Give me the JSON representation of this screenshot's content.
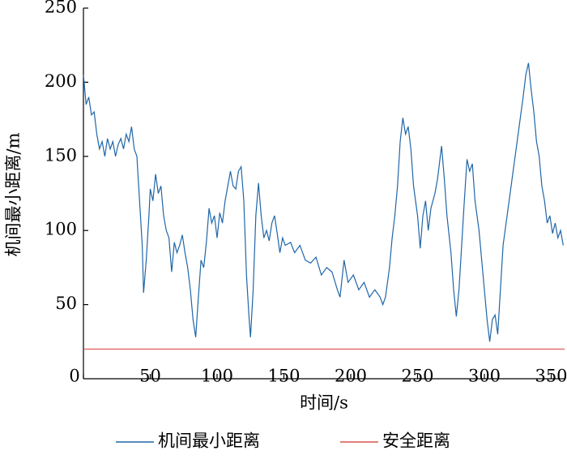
{
  "chart_data": {
    "type": "line",
    "x_label": "时间/s",
    "y_label": "机间最小距离/m",
    "xlim": [
      0,
      360
    ],
    "ylim": [
      0,
      250
    ],
    "xticks": [
      0,
      50,
      100,
      150,
      200,
      250,
      300,
      350
    ],
    "yticks": [
      50,
      100,
      150,
      200,
      250
    ],
    "series": [
      {
        "name": "机间最小距离",
        "color": "#2066a8",
        "x": [
          0,
          2,
          4,
          6,
          8,
          10,
          12,
          14,
          16,
          18,
          20,
          22,
          24,
          26,
          28,
          30,
          32,
          34,
          36,
          38,
          40,
          42,
          44,
          45,
          47,
          49,
          50,
          52,
          54,
          56,
          58,
          60,
          62,
          64,
          66,
          68,
          70,
          72,
          74,
          76,
          78,
          80,
          82,
          84,
          86,
          88,
          90,
          92,
          94,
          96,
          98,
          100,
          102,
          104,
          106,
          108,
          110,
          112,
          114,
          116,
          118,
          120,
          122,
          124,
          125,
          127,
          129,
          131,
          133,
          135,
          137,
          139,
          141,
          143,
          145,
          147,
          149,
          151,
          155,
          158,
          162,
          166,
          170,
          174,
          178,
          182,
          186,
          190,
          192,
          195,
          198,
          202,
          206,
          210,
          214,
          218,
          222,
          224,
          226,
          229,
          231,
          233,
          235,
          237,
          239,
          241,
          243,
          245,
          247,
          250,
          252,
          254,
          256,
          258,
          260,
          263,
          265,
          267,
          268,
          270,
          272,
          275,
          277,
          279,
          281,
          283,
          285,
          287,
          289,
          291,
          293,
          296,
          299,
          302,
          304,
          306,
          308,
          310,
          312,
          314,
          317,
          320,
          323,
          326,
          329,
          331,
          333,
          335,
          337,
          339,
          341,
          343,
          345,
          347,
          349,
          351,
          353,
          355,
          357,
          359
        ],
        "values": [
          205,
          185,
          190,
          178,
          180,
          165,
          155,
          160,
          150,
          162,
          155,
          160,
          150,
          158,
          162,
          155,
          165,
          160,
          170,
          155,
          150,
          120,
          90,
          58,
          80,
          110,
          128,
          120,
          138,
          125,
          130,
          110,
          100,
          95,
          72,
          92,
          85,
          90,
          97,
          85,
          75,
          60,
          40,
          28,
          55,
          80,
          75,
          92,
          115,
          105,
          110,
          95,
          112,
          105,
          120,
          130,
          140,
          130,
          128,
          140,
          143,
          120,
          70,
          40,
          28,
          60,
          110,
          132,
          110,
          95,
          100,
          93,
          105,
          110,
          98,
          85,
          95,
          90,
          92,
          85,
          90,
          80,
          78,
          82,
          70,
          75,
          72,
          60,
          55,
          80,
          65,
          70,
          60,
          65,
          55,
          60,
          55,
          50,
          55,
          75,
          95,
          110,
          130,
          160,
          176,
          165,
          170,
          155,
          130,
          110,
          88,
          110,
          120,
          100,
          115,
          125,
          135,
          150,
          157,
          135,
          110,
          85,
          60,
          42,
          60,
          90,
          120,
          148,
          140,
          145,
          120,
          100,
          70,
          40,
          25,
          40,
          43,
          30,
          60,
          90,
          110,
          130,
          150,
          170,
          190,
          205,
          213,
          195,
          180,
          160,
          150,
          130,
          120,
          105,
          110,
          98,
          105,
          95,
          100,
          90
        ]
      },
      {
        "name": "安全距离",
        "color": "#d9534f",
        "x": [
          0,
          360
        ],
        "values": [
          20,
          20
        ]
      }
    ]
  }
}
